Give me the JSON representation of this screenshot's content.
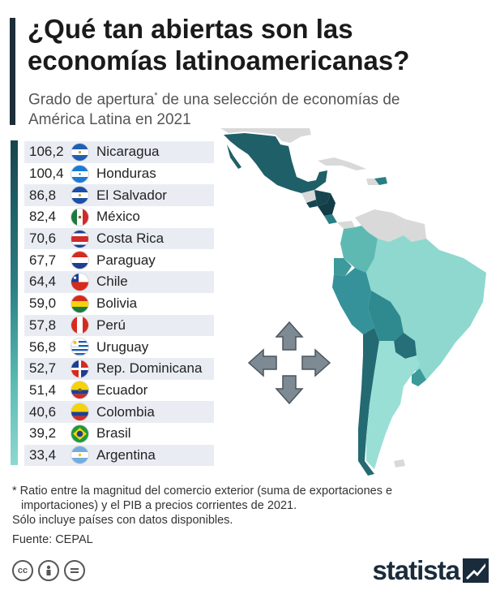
{
  "header": {
    "title": "¿Qué tan abiertas son las economías latinoamericanas?",
    "subtitle_a": "Grado de apertura",
    "subtitle_mark": "*",
    "subtitle_b": " de una selección de economías de América Latina en 2021"
  },
  "chart_data": {
    "type": "table",
    "rows": [
      {
        "value": "106,2",
        "country": "Nicaragua"
      },
      {
        "value": "100,4",
        "country": "Honduras"
      },
      {
        "value": "86,8",
        "country": "El Salvador"
      },
      {
        "value": "82,4",
        "country": "México"
      },
      {
        "value": "70,6",
        "country": "Costa Rica"
      },
      {
        "value": "67,7",
        "country": "Paraguay"
      },
      {
        "value": "64,4",
        "country": "Chile"
      },
      {
        "value": "59,0",
        "country": "Bolivia"
      },
      {
        "value": "57,8",
        "country": "Perú"
      },
      {
        "value": "56,8",
        "country": "Uruguay"
      },
      {
        "value": "52,7",
        "country": "Rep. Dominicana"
      },
      {
        "value": "51,4",
        "country": "Ecuador"
      },
      {
        "value": "40,6",
        "country": "Colombia"
      },
      {
        "value": "39,2",
        "country": "Brasil"
      },
      {
        "value": "33,4",
        "country": "Argentina"
      }
    ]
  },
  "colors": {
    "scale_dark": "#17454f",
    "scale_mid": "#2a7f84",
    "scale_light": "#8ed8cf",
    "no_data": "#d9d9d9",
    "row_shade": "#e9edf3"
  },
  "footer": {
    "note_line1": "* Ratio entre la magnitud del comercio exterior (suma de exportaciones e",
    "note_line2": "importaciones) y el PIB a precios corrientes de 2021.",
    "note_line3": "Sólo incluye países con datos disponibles.",
    "source": "Fuente: CEPAL",
    "brand": "statista"
  },
  "icons": [
    "cc-icon",
    "person-icon",
    "equal-icon",
    "statista-logo-icon",
    "pan-arrows-icon"
  ]
}
